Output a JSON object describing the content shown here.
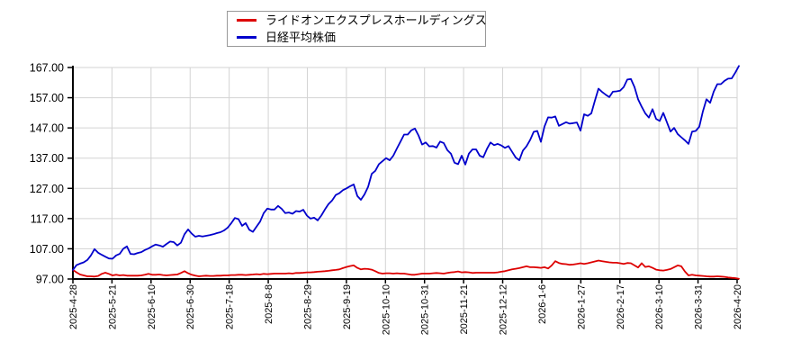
{
  "legend": {
    "items": [
      {
        "label": "ライドオンエクスプレスホールディングス",
        "color": "#dd0000"
      },
      {
        "label": "日経平均株価",
        "color": "#0000cc"
      }
    ]
  },
  "chart_data": {
    "type": "line",
    "title": "",
    "xlabel": "",
    "ylabel": "",
    "grid": true,
    "legend_position": "top-center",
    "background": "#ffffff",
    "grid_color": "#d3d3d3",
    "axis_color": "#000000",
    "ylim": [
      97,
      167
    ],
    "y_ticks": [
      97,
      107,
      117,
      127,
      137,
      147,
      157,
      167
    ],
    "y_tick_labels": [
      "97.00",
      "107.00",
      "117.00",
      "127.00",
      "137.00",
      "147.00",
      "157.00",
      "167.00"
    ],
    "x_labels": [
      "2025-4-28",
      "2025-5-21",
      "2025-6-10",
      "2025-6-30",
      "2025-7-18",
      "2025-8-8",
      "2025-8-29",
      "2025-9-19",
      "2025-10-10",
      "2025-10-31",
      "2025-11-21",
      "2025-12-12",
      "2026-1-6",
      "2026-1-27",
      "2026-2-17",
      "2026-3-10",
      "2026-3-31",
      "2026-4-20"
    ],
    "series": [
      {
        "name": "ライドオンエクスプレスホールディングス",
        "color": "#dd0000",
        "values": [
          100.0,
          99.2,
          98.5,
          98.2,
          97.9,
          97.9,
          97.8,
          98.0,
          98.7,
          99.1,
          98.7,
          98.2,
          98.4,
          98.2,
          98.3,
          98.1,
          98.1,
          98.1,
          98.1,
          98.2,
          98.4,
          98.7,
          98.4,
          98.4,
          98.5,
          98.3,
          98.2,
          98.3,
          98.4,
          98.5,
          99.0,
          99.6,
          98.9,
          98.4,
          98.1,
          97.9,
          98.0,
          98.1,
          98.0,
          98.0,
          98.1,
          98.1,
          98.2,
          98.2,
          98.3,
          98.3,
          98.4,
          98.4,
          98.3,
          98.4,
          98.5,
          98.6,
          98.5,
          98.7,
          98.6,
          98.7,
          98.8,
          98.8,
          98.8,
          98.8,
          98.9,
          98.8,
          99.0,
          99.0,
          99.1,
          99.2,
          99.2,
          99.3,
          99.4,
          99.5,
          99.6,
          99.7,
          99.9,
          100.0,
          100.2,
          100.6,
          101.0,
          101.3,
          101.5,
          100.7,
          100.2,
          100.4,
          100.3,
          100.1,
          99.6,
          99.0,
          98.8,
          98.9,
          98.9,
          98.8,
          98.9,
          98.8,
          98.8,
          98.6,
          98.4,
          98.4,
          98.6,
          98.8,
          98.8,
          98.8,
          98.9,
          99.0,
          98.9,
          98.8,
          99.0,
          99.2,
          99.3,
          99.5,
          99.2,
          99.3,
          99.2,
          99.0,
          99.1,
          99.1,
          99.1,
          99.1,
          99.1,
          99.1,
          99.2,
          99.4,
          99.6,
          99.9,
          100.2,
          100.4,
          100.6,
          100.9,
          101.2,
          100.9,
          100.9,
          100.8,
          100.7,
          100.9,
          100.5,
          101.5,
          102.9,
          102.3,
          102.0,
          101.9,
          101.7,
          101.8,
          102.0,
          102.2,
          102.0,
          102.2,
          102.5,
          102.8,
          103.1,
          102.9,
          102.7,
          102.5,
          102.4,
          102.4,
          102.2,
          102.0,
          102.3,
          102.2,
          101.5,
          100.8,
          102.2,
          101.0,
          101.2,
          100.7,
          100.1,
          99.9,
          99.8,
          100.0,
          100.3,
          100.9,
          101.5,
          101.2,
          99.5,
          98.2,
          98.4,
          98.2,
          98.1,
          98.0,
          97.9,
          97.8,
          97.8,
          97.9,
          97.8,
          97.7,
          97.5,
          97.4,
          97.3,
          97.1
        ]
      },
      {
        "name": "日経平均株価",
        "color": "#0000cc",
        "values": [
          100.0,
          101.6,
          102.1,
          102.5,
          103.3,
          104.8,
          106.9,
          105.7,
          105.0,
          104.4,
          103.8,
          103.7,
          104.8,
          105.3,
          107.0,
          107.8,
          105.3,
          105.2,
          105.6,
          105.9,
          106.6,
          107.1,
          107.8,
          108.4,
          108.1,
          107.7,
          108.6,
          109.4,
          109.2,
          108.1,
          109.0,
          111.8,
          113.4,
          112.0,
          111.0,
          111.3,
          111.1,
          111.3,
          111.5,
          111.8,
          112.2,
          112.5,
          113.1,
          114.0,
          115.5,
          117.2,
          116.8,
          114.6,
          115.5,
          113.3,
          112.6,
          114.3,
          116.0,
          118.8,
          120.3,
          120.0,
          120.0,
          121.2,
          120.2,
          118.8,
          119.0,
          118.6,
          119.5,
          119.3,
          119.9,
          118.0,
          117.0,
          117.3,
          116.4,
          118.0,
          120.0,
          121.8,
          123.0,
          124.8,
          125.4,
          126.4,
          127.0,
          127.7,
          128.3,
          124.5,
          123.2,
          125.0,
          127.5,
          131.8,
          132.8,
          135.0,
          136.0,
          137.0,
          136.3,
          137.8,
          140.2,
          142.5,
          144.8,
          144.8,
          146.2,
          146.8,
          144.5,
          141.5,
          142.2,
          140.9,
          141.0,
          140.5,
          142.5,
          142.0,
          139.7,
          138.5,
          135.5,
          135.0,
          137.8,
          134.9,
          138.5,
          139.9,
          139.9,
          137.8,
          137.3,
          140.0,
          142.2,
          141.3,
          141.7,
          141.2,
          140.4,
          141.0,
          139.1,
          137.2,
          136.3,
          139.5,
          140.9,
          143.0,
          145.7,
          146.0,
          142.4,
          147.5,
          150.5,
          150.4,
          150.8,
          147.7,
          148.3,
          148.9,
          148.4,
          148.6,
          148.8,
          146.1,
          151.5,
          151.0,
          151.8,
          156.0,
          160.0,
          158.9,
          158.0,
          157.2,
          159.0,
          159.1,
          159.3,
          160.5,
          163.0,
          163.2,
          160.5,
          156.5,
          154.0,
          151.8,
          150.4,
          153.2,
          150.0,
          149.3,
          152.0,
          148.9,
          145.8,
          147.0,
          145.0,
          143.9,
          142.9,
          141.7,
          145.8,
          146.0,
          147.4,
          152.5,
          156.5,
          155.3,
          159.0,
          161.5,
          161.5,
          162.6,
          163.3,
          163.4,
          165.3,
          167.5
        ]
      }
    ]
  }
}
